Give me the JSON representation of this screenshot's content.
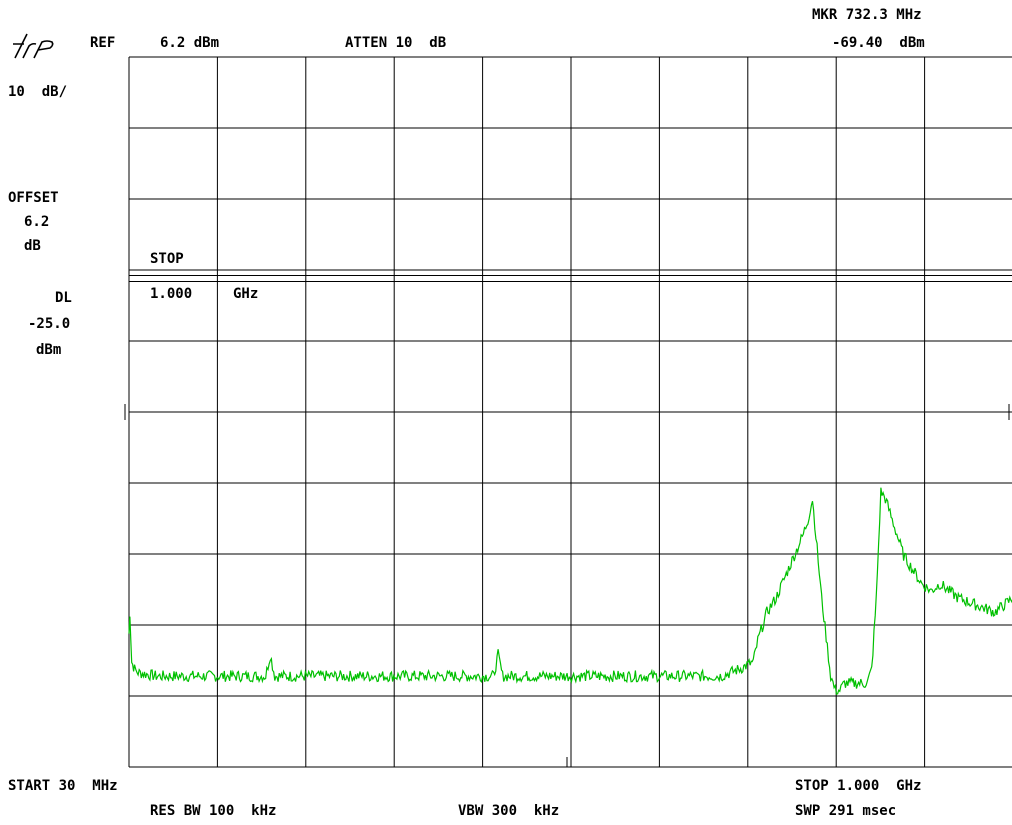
{
  "header": {
    "ref_label": "REF",
    "ref_value": "6.2 dBm",
    "atten": "ATTEN 10  dB",
    "marker_freq": "MKR 732.3 MHz",
    "marker_level": "-69.40  dBm"
  },
  "left_panel": {
    "scale": "10  dB/",
    "offset_label": "OFFSET",
    "offset_value": "6.2",
    "offset_unit": "dB",
    "dl_label": "DL",
    "dl_value": "-25.0",
    "dl_unit": "dBm"
  },
  "annotation": {
    "stop_label": "STOP",
    "stop_value": "1.000",
    "stop_unit": "GHz"
  },
  "footer": {
    "start": "START 30  MHz",
    "stop": "STOP 1.000  GHz",
    "res_bw": "RES BW 100  kHz",
    "vbw": "VBW 300  kHz",
    "sweep": "SWP 291 msec"
  },
  "colors": {
    "trace": "#00c000",
    "grid": "#000000",
    "background": "#ffffff"
  },
  "chart_data": {
    "type": "line",
    "title": "",
    "xlabel": "",
    "ylabel": "",
    "x_unit": "MHz",
    "y_unit": "dBm",
    "xlim": [
      30,
      1000
    ],
    "ylim": [
      -93.8,
      6.2
    ],
    "display_line_dbm": -25.0,
    "grid": true,
    "divisions": {
      "x": 10,
      "y": 10
    },
    "series": [
      {
        "x": [
          30,
          31,
          33,
          36,
          40,
          60,
          100,
          150,
          180,
          185,
          190,
          250,
          300,
          360,
          400,
          430,
          435,
          440,
          500,
          550,
          600,
          640,
          680,
          700,
          715,
          720,
          725,
          730,
          740,
          750,
          760,
          770,
          775,
          780,
          790,
          800,
          805,
          810,
          815,
          820,
          840,
          845,
          850,
          855,
          860,
          870,
          880,
          890,
          900,
          910,
          920,
          940,
          960,
          980,
          1000
        ],
        "values": [
          -75,
          -72,
          -79,
          -80,
          -80.5,
          -81,
          -81,
          -81,
          -81,
          -78,
          -81,
          -81,
          -81,
          -81,
          -81,
          -81,
          -78,
          -81,
          -81,
          -81,
          -81,
          -81,
          -81,
          -80,
          -79,
          -76,
          -74,
          -72,
          -70,
          -67,
          -64,
          -61,
          -59,
          -56,
          -70,
          -81,
          -83,
          -83,
          -82,
          -82,
          -82,
          -80,
          -70,
          -55,
          -56,
          -60,
          -64,
          -66,
          -68,
          -69,
          -68,
          -70,
          -71,
          -72,
          -70
        ]
      }
    ]
  }
}
